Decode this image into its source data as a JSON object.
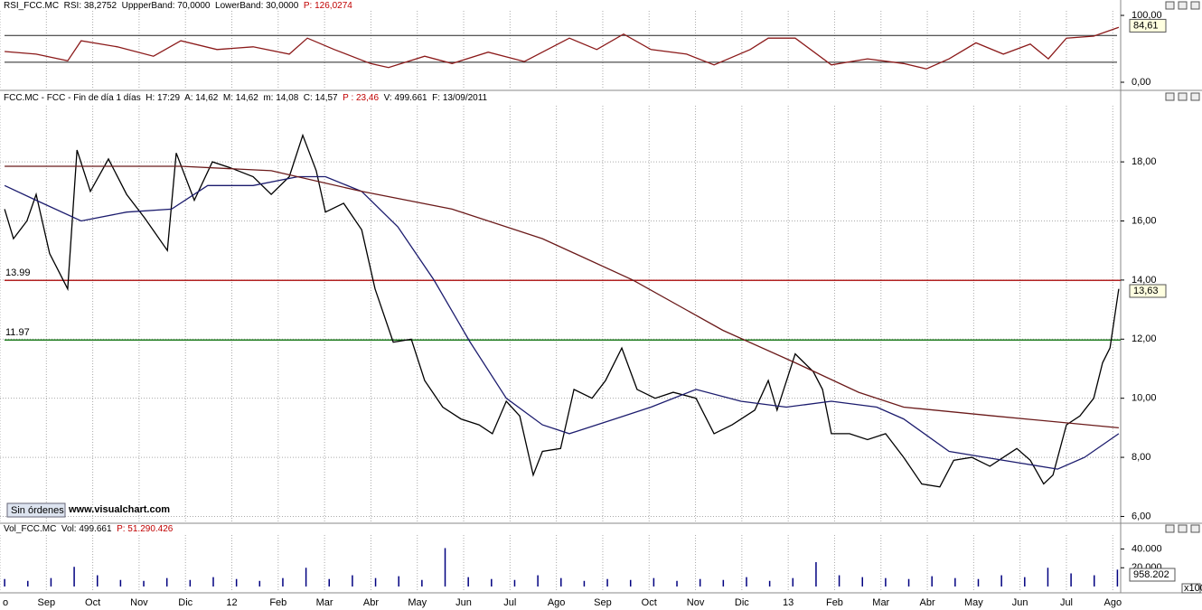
{
  "chart_data": [
    {
      "type": "line",
      "header": "RSI_FCC.MC  RSI: 38,2752  UppperBand: 70,0000  LowerBand: 30,0000  ",
      "header_note": "P: 126,0274",
      "xlim": [
        0,
        24.17
      ],
      "ylim": [
        -10.8,
        106.8
      ],
      "yticks": [
        {
          "value": 0,
          "label": "0,00"
        },
        {
          "value": 100,
          "label": "100,00"
        }
      ],
      "bands": [
        70,
        30
      ],
      "series": [
        {
          "name": "RSI",
          "color": "#8b1a1a",
          "x": [
            0.1,
            0.78,
            1.46,
            1.75,
            2.53,
            3.31,
            3.9,
            4.68,
            5.46,
            6.24,
            6.63,
            7.21,
            7.99,
            8.38,
            9.16,
            9.75,
            10.53,
            11.31,
            12.28,
            12.87,
            13.45,
            14.04,
            14.81,
            15.4,
            16.18,
            16.57,
            17.15,
            17.93,
            18.71,
            19.49,
            19.98,
            20.47,
            21.05,
            21.64,
            22.22,
            22.61,
            23.0,
            23.59,
            24.13
          ],
          "values": [
            46,
            42,
            32,
            62,
            53,
            39,
            62,
            49,
            53,
            42,
            66,
            49,
            28,
            22,
            39,
            28,
            45,
            31,
            66,
            49,
            72,
            49,
            42,
            26,
            49,
            66,
            66,
            26,
            35,
            28,
            20,
            35,
            59,
            42,
            57,
            35,
            66,
            69,
            82
          ]
        }
      ],
      "last": {
        "value": 84.61,
        "label": "84,61"
      }
    },
    {
      "type": "line",
      "header": "FCC.MC - FCC - Fin de día 1 días  H: 17:29  A: 14,62  M: 14,62  m: 14,08  C: 14,57  ",
      "header_note": "P : 23,46",
      "header_tail": "  V: 499.661  F: 13/09/2011",
      "watermark": "www.visualchart.com",
      "button": "Sin órdenes",
      "xlim": [
        0,
        24.17
      ],
      "ylim": [
        5.8,
        19.9
      ],
      "yticks": [
        {
          "value": 6,
          "label": "6,00"
        },
        {
          "value": 8,
          "label": "8,00"
        },
        {
          "value": 10,
          "label": "10,00"
        },
        {
          "value": 12,
          "label": "12,00"
        },
        {
          "value": 14,
          "label": "14,00"
        },
        {
          "value": 16,
          "label": "16,00"
        },
        {
          "value": 18,
          "label": "18,00"
        }
      ],
      "grid": true,
      "levels": [
        {
          "value": 13.99,
          "label": "13.99",
          "color": "#b22222"
        },
        {
          "value": 11.97,
          "label": "11.97",
          "color": "#1e7b1e"
        }
      ],
      "series": [
        {
          "color": "#000000",
          "x": [
            0.1,
            0.29,
            0.58,
            0.78,
            1.07,
            1.46,
            1.66,
            1.95,
            2.34,
            2.73,
            3.12,
            3.61,
            3.8,
            4.19,
            4.58,
            4.97,
            5.46,
            5.85,
            6.24,
            6.53,
            6.82,
            7.02,
            7.41,
            7.8,
            8.09,
            8.48,
            8.87,
            9.16,
            9.55,
            9.94,
            10.33,
            10.62,
            10.92,
            11.21,
            11.5,
            11.7,
            12.09,
            12.38,
            12.77,
            13.06,
            13.41,
            13.74,
            14.13,
            14.52,
            15.01,
            15.4,
            15.79,
            16.28,
            16.57,
            16.76,
            17.15,
            17.54,
            17.74,
            17.93,
            18.32,
            18.71,
            19.1,
            19.49,
            19.88,
            20.27,
            20.57,
            20.96,
            21.35,
            21.64,
            21.93,
            22.22,
            22.51,
            22.71,
            23.0,
            23.29,
            23.59,
            23.78,
            23.94,
            24.13
          ],
          "values": [
            16.4,
            15.4,
            16,
            16.9,
            14.9,
            13.7,
            18.4,
            17,
            18.1,
            16.9,
            16.1,
            15,
            18.3,
            16.7,
            18,
            17.8,
            17.5,
            16.9,
            17.5,
            18.9,
            17.7,
            16.3,
            16.6,
            15.7,
            13.7,
            11.9,
            12,
            10.6,
            9.7,
            9.3,
            9.1,
            8.8,
            9.9,
            9.4,
            7.4,
            8.2,
            8.3,
            10.3,
            10,
            10.6,
            11.7,
            10.3,
            10,
            10.2,
            10,
            8.8,
            9.1,
            9.6,
            10.6,
            9.6,
            11.5,
            10.9,
            10.3,
            8.8,
            8.8,
            8.6,
            8.8,
            8,
            7.1,
            7,
            7.9,
            8,
            7.7,
            8,
            8.3,
            7.9,
            7.1,
            7.4,
            9.1,
            9.4,
            10,
            11.2,
            11.7,
            13.7
          ]
        },
        {
          "color": "#1c1c6e",
          "x": [
            0.1,
            0.78,
            1.75,
            2.73,
            3.7,
            4.48,
            5.46,
            6.43,
            7.02,
            7.8,
            8.58,
            9.36,
            10.14,
            10.92,
            11.7,
            12.28,
            13.26,
            14.04,
            15.01,
            15.98,
            16.96,
            17.93,
            18.91,
            19.49,
            20.47,
            21.25,
            22.03,
            22.81,
            23.39,
            24.13
          ],
          "values": [
            17.2,
            16.7,
            16,
            16.3,
            16.4,
            17.2,
            17.2,
            17.5,
            17.5,
            17,
            15.8,
            14,
            11.9,
            10,
            9.1,
            8.8,
            9.3,
            9.7,
            10.3,
            9.9,
            9.7,
            9.9,
            9.7,
            9.3,
            8.2,
            8,
            7.8,
            7.6,
            8,
            8.8
          ]
        },
        {
          "color": "#6b1a1a",
          "x": [
            0.1,
            3.9,
            5.85,
            7.8,
            9.75,
            11.7,
            13.65,
            15.59,
            17.15,
            18.52,
            19.49,
            21.44,
            24.13
          ],
          "values": [
            17.85,
            17.85,
            17.7,
            17,
            16.4,
            15.4,
            14,
            12.3,
            11.2,
            10.2,
            9.7,
            9.4,
            9
          ]
        }
      ],
      "last": {
        "value": 13.63,
        "label": "13,63"
      }
    },
    {
      "type": "bar",
      "header": "Vol_FCC.MC  Vol: 499.661  ",
      "header_note": "P: 51.290.426",
      "xlim": [
        0,
        24.17
      ],
      "ylim": [
        -5800,
        55000
      ],
      "yticks": [
        {
          "value": 20000,
          "label": "20.000"
        },
        {
          "value": 40000,
          "label": "40.000"
        }
      ],
      "series": [
        {
          "color": "#000080",
          "x": [
            0.1,
            0.6,
            1.1,
            1.6,
            2.1,
            2.6,
            3.1,
            3.6,
            4.1,
            4.6,
            5.1,
            5.6,
            6.1,
            6.6,
            7.1,
            7.6,
            8.1,
            8.6,
            9.1,
            9.6,
            10.1,
            10.6,
            11.1,
            11.6,
            12.1,
            12.6,
            13.1,
            13.6,
            14.1,
            14.6,
            15.1,
            15.6,
            16.1,
            16.6,
            17.1,
            17.6,
            18.1,
            18.6,
            19.1,
            19.6,
            20.1,
            20.6,
            21.1,
            21.6,
            22.1,
            22.6,
            23.1,
            23.6,
            24.1
          ],
          "values": [
            8000,
            6000,
            9000,
            21000,
            12000,
            7000,
            6000,
            9000,
            7000,
            10000,
            8000,
            6000,
            9000,
            20000,
            8000,
            12000,
            9000,
            11000,
            7000,
            41000,
            10000,
            8000,
            7000,
            12000,
            9000,
            6000,
            8000,
            7000,
            9000,
            6000,
            8000,
            7000,
            10000,
            6000,
            9000,
            26000,
            12000,
            10000,
            9000,
            8000,
            11000,
            9000,
            8000,
            12000,
            10000,
            20000,
            14000,
            12000,
            18000
          ]
        }
      ],
      "last_label": "958.202",
      "unit": "x100",
      "categories": [
        "o",
        "Sep",
        "Oct",
        "Nov",
        "Dic",
        "12",
        "Feb",
        "Mar",
        "Abr",
        "May",
        "Jun",
        "Jul",
        "Ago",
        "Sep",
        "Oct",
        "Nov",
        "Dic",
        "13",
        "Feb",
        "Mar",
        "Abr",
        "May",
        "Jun",
        "Jul",
        "Ago"
      ]
    }
  ]
}
